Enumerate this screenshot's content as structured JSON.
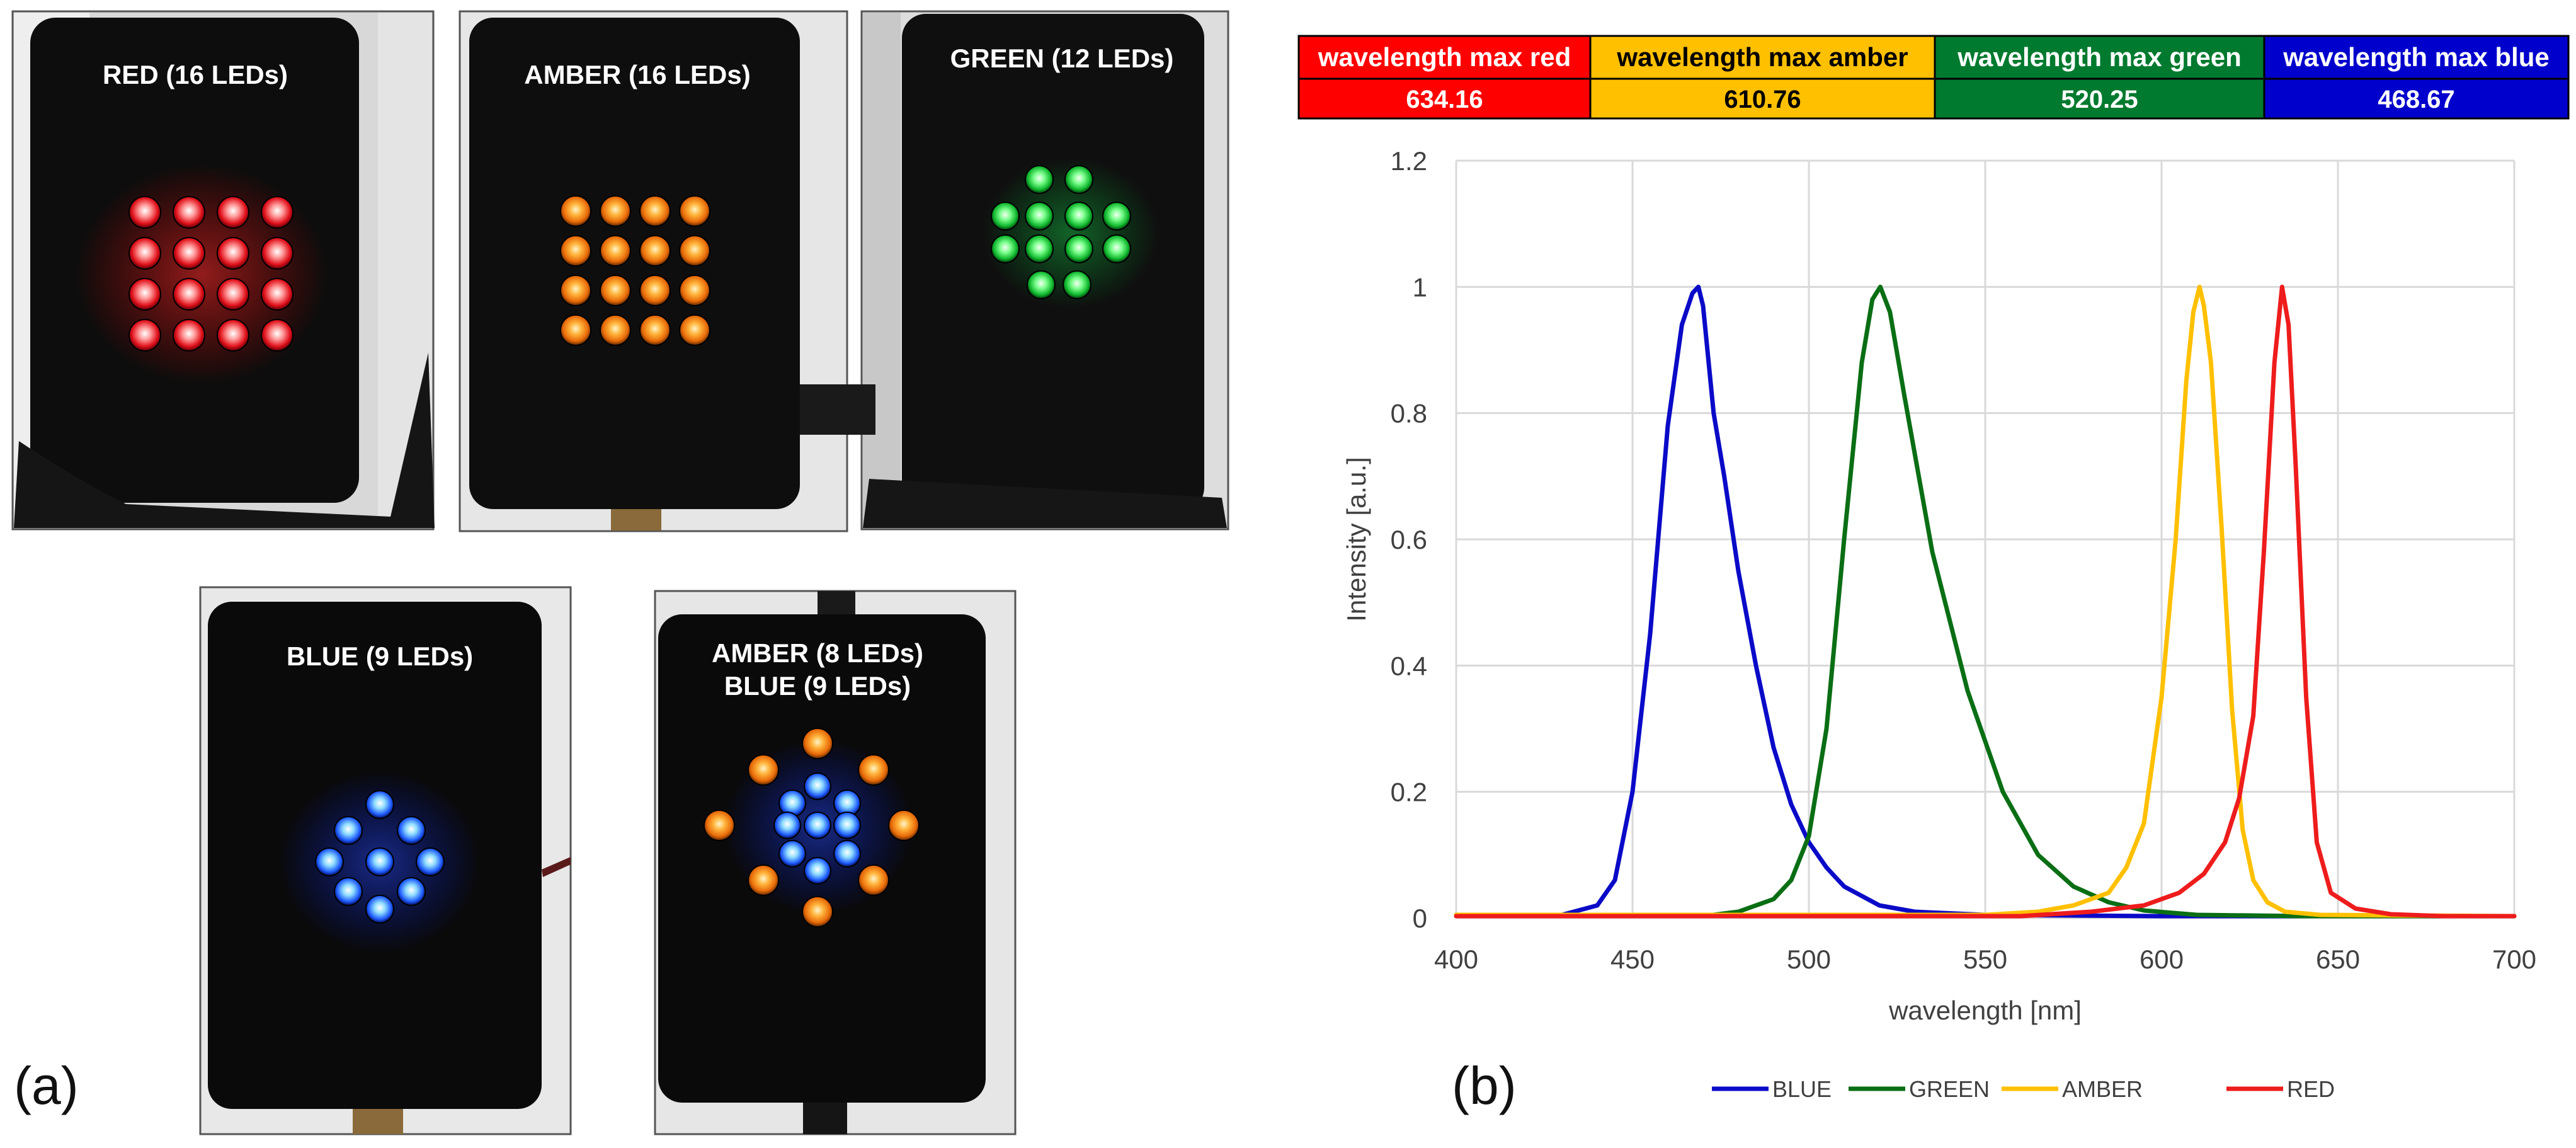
{
  "figure": {
    "label_a": "(a)",
    "label_b": "(b)"
  },
  "photos": [
    {
      "title_lines": [
        "RED (16 LEDs)"
      ],
      "leds": [
        {
          "color": "red",
          "count": 16
        }
      ]
    },
    {
      "title_lines": [
        "AMBER (16 LEDs)"
      ],
      "leds": [
        {
          "color": "amber",
          "count": 16
        }
      ]
    },
    {
      "title_lines": [
        "GREEN (12 LEDs)"
      ],
      "leds": [
        {
          "color": "green",
          "count": 12
        }
      ]
    },
    {
      "title_lines": [
        "BLUE (9 LEDs)"
      ],
      "leds": [
        {
          "color": "blue",
          "count": 9
        }
      ]
    },
    {
      "title_lines": [
        "AMBER (8 LEDs)",
        "BLUE (9 LEDs)"
      ],
      "leds": [
        {
          "color": "amber",
          "count": 8
        },
        {
          "color": "blue",
          "count": 9
        }
      ]
    }
  ],
  "peak_table": {
    "headers": [
      "wavelength max red",
      "wavelength max amber",
      "wavelength max green",
      "wavelength max blue"
    ],
    "values": [
      "634.16",
      "610.76",
      "520.25",
      "468.67"
    ],
    "header_colors": [
      "#ff0000",
      "#ffc000",
      "#007a2e",
      "#0000cc"
    ],
    "header_text_colors": [
      "#ffffff",
      "#000000",
      "#ffffff",
      "#ffffff"
    ]
  },
  "chart_data": {
    "type": "line",
    "xlabel": "wavelength  [nm]",
    "ylabel": "Intensity [a.u.]",
    "xlim": [
      400,
      700
    ],
    "ylim": [
      0,
      1.2
    ],
    "x_ticks": [
      400,
      450,
      500,
      550,
      600,
      650,
      700
    ],
    "y_ticks": [
      "0",
      "0.2",
      "0.4",
      "0.6",
      "0.8",
      "1",
      "1.2"
    ],
    "grid": true,
    "legend_position": "bottom",
    "series": [
      {
        "name": "BLUE",
        "color": "#0a0ac8",
        "x": [
          400,
          430,
          440,
          445,
          450,
          455,
          460,
          464,
          467,
          468.67,
          470,
          473,
          476,
          480,
          485,
          490,
          495,
          500,
          505,
          510,
          520,
          530,
          550,
          600,
          700
        ],
        "y": [
          0.005,
          0.005,
          0.02,
          0.06,
          0.2,
          0.45,
          0.78,
          0.94,
          0.99,
          1.0,
          0.97,
          0.8,
          0.7,
          0.55,
          0.4,
          0.27,
          0.18,
          0.12,
          0.08,
          0.05,
          0.02,
          0.01,
          0.005,
          0.003,
          0.003
        ]
      },
      {
        "name": "GREEN",
        "color": "#0a6e14",
        "x": [
          400,
          470,
          480,
          490,
          495,
          500,
          505,
          510,
          515,
          518,
          520.25,
          523,
          527,
          535,
          545,
          555,
          565,
          575,
          585,
          595,
          610,
          640,
          700
        ],
        "y": [
          0.003,
          0.003,
          0.01,
          0.03,
          0.06,
          0.13,
          0.3,
          0.6,
          0.88,
          0.98,
          1.0,
          0.96,
          0.83,
          0.58,
          0.36,
          0.2,
          0.1,
          0.05,
          0.025,
          0.012,
          0.005,
          0.003,
          0.003
        ]
      },
      {
        "name": "AMBER",
        "color": "#ffc000",
        "x": [
          400,
          550,
          565,
          575,
          585,
          590,
          595,
          600,
          604,
          607,
          609,
          610.76,
          612,
          614,
          617,
          620,
          623,
          626,
          630,
          635,
          645,
          700
        ],
        "y": [
          0.005,
          0.005,
          0.01,
          0.02,
          0.04,
          0.08,
          0.15,
          0.35,
          0.6,
          0.85,
          0.96,
          1.0,
          0.97,
          0.88,
          0.62,
          0.33,
          0.14,
          0.06,
          0.025,
          0.01,
          0.005,
          0.003
        ]
      },
      {
        "name": "RED",
        "color": "#ee1c1c",
        "x": [
          400,
          560,
          580,
          595,
          605,
          612,
          618,
          622,
          626,
          629,
          632,
          634.16,
          636,
          638,
          641,
          644,
          648,
          655,
          665,
          680,
          700
        ],
        "y": [
          0.003,
          0.003,
          0.01,
          0.02,
          0.04,
          0.07,
          0.12,
          0.19,
          0.32,
          0.58,
          0.88,
          1.0,
          0.94,
          0.72,
          0.35,
          0.12,
          0.04,
          0.015,
          0.006,
          0.003,
          0.003
        ]
      }
    ]
  }
}
